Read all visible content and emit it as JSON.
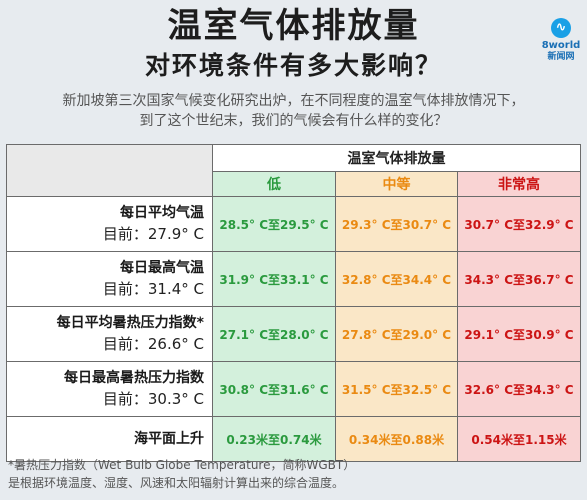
{
  "title_line1": "温室气体排放量",
  "title_line2": "对环境条件有多大影响？",
  "logo": {
    "brand": "8world",
    "sub": "新闻网",
    "icon": "8world-logo-icon"
  },
  "intro_line1": "新加坡第三次国家气候变化研究出炉，在不同程度的温室气体排放情况下，",
  "intro_line2": "到了这个世纪末，我们的气候会有什么样的变化？",
  "table": {
    "header": "温室气体排放量",
    "levels": [
      "低",
      "中等",
      "非常高"
    ],
    "rows": [
      {
        "name": "每日平均气温",
        "current": "目前：27.9° C",
        "values": [
          "28.5° C至29.5° C",
          "29.3° C至30.7° C",
          "30.7° C至32.9° C"
        ]
      },
      {
        "name": "每日最高气温",
        "current": "目前：31.4° C",
        "values": [
          "31.9° C至33.1° C",
          "32.8° C至34.4° C",
          "34.3° C至36.7° C"
        ]
      },
      {
        "name": "每日平均暑热压力指数*",
        "current": "目前：26.6° C",
        "values": [
          "27.1° C至28.0° C",
          "27.8° C至29.0° C",
          "29.1° C至30.9° C"
        ]
      },
      {
        "name": "每日最高暑热压力指数",
        "current": "目前：30.3° C",
        "values": [
          "30.8° C至31.6° C",
          "31.5° C至32.5° C",
          "32.6° C至34.3° C"
        ]
      },
      {
        "name": "海平面上升",
        "current": "",
        "values": [
          "0.23米至0.74米",
          "0.34米至0.88米",
          "0.54米至1.15米"
        ]
      }
    ]
  },
  "footnote_line1": "*暑热压力指数（Wet Bulb Globe Temperature，简称WGBT）",
  "footnote_line2": "是根据环境温度、湿度、风速和太阳辐射计算出来的综合温度。",
  "colors": {
    "low": "#2a9a3e",
    "mid": "#ea8a12",
    "high": "#cc1414",
    "low_bg": "#d3f0dc",
    "mid_bg": "#fae7c7",
    "high_bg": "#f9d3d3"
  }
}
